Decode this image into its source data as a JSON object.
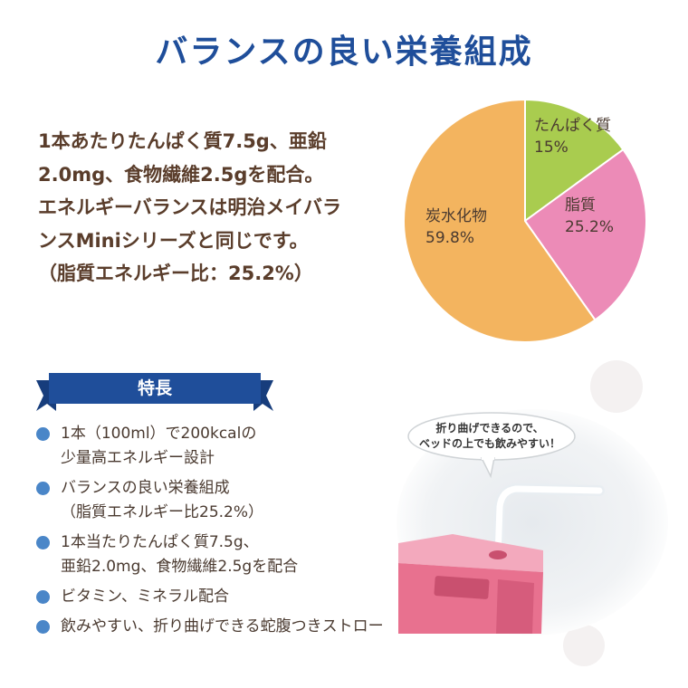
{
  "title": "バランスの良い栄養組成",
  "intro_lines": [
    "1本あたりたんぱく質7.5g、亜鉛",
    "2.0mg、食物繊維2.5gを配合。",
    "エネルギーバランスは明治メイバラ",
    "ンスMiniシリーズと同じです。",
    "（脂質エネルギー比：25.2%）"
  ],
  "chart_data": {
    "type": "pie",
    "slices": [
      {
        "name": "たんぱく質",
        "value": 15,
        "label": "15%",
        "color": "#a9cc4f"
      },
      {
        "name": "脂質",
        "value": 25.2,
        "label": "25.2%",
        "color": "#ec8bb7"
      },
      {
        "name": "炭水化物",
        "value": 59.8,
        "label": "59.8%",
        "color": "#f3b45f"
      }
    ]
  },
  "features_heading": "特長",
  "features": [
    {
      "line1": "1本（100ml）で200kcalの",
      "line2": "少量高エネルギー設計"
    },
    {
      "line1": "バランスの良い栄養組成",
      "line2": "（脂質エネルギー比25.2%）"
    },
    {
      "line1": "1本当たりたんぱく質7.5g、",
      "line2": "亜鉛2.0mg、食物繊維2.5gを配合"
    },
    {
      "line1": "ビタミン、ミネラル配合",
      "line2": ""
    },
    {
      "line1": "飲みやすい、折り曲げできる蛇腹つきストロー",
      "line2": ""
    }
  ],
  "bubble": {
    "line1": "折り曲げできるので、",
    "line2": "ベッドの上でも飲みやすい！"
  },
  "colors": {
    "title": "#1f4e9a",
    "ribbon": "#1f4e9a",
    "bullet": "#4a86c8",
    "carton": "#e8718f"
  }
}
